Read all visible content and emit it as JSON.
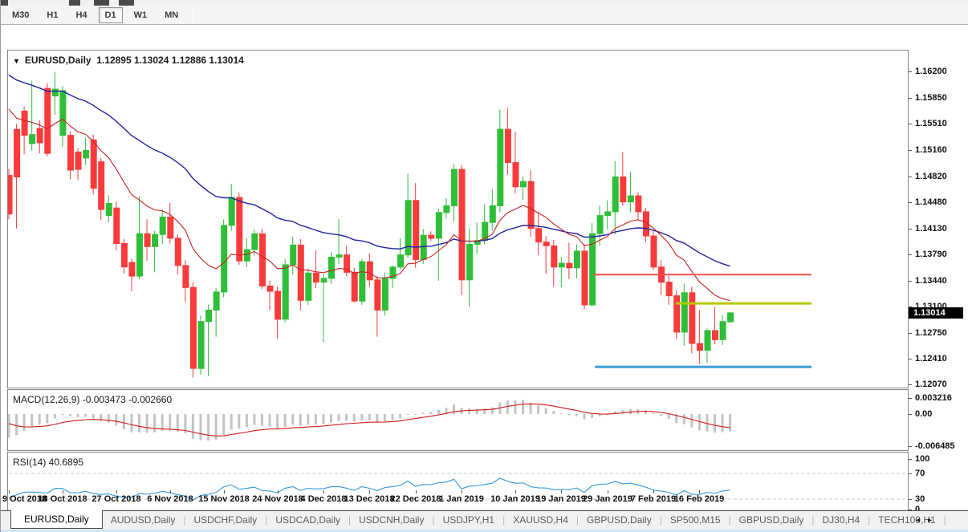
{
  "toolbar": {
    "timeframes": [
      {
        "label": "M30",
        "active": false
      },
      {
        "label": "H1",
        "active": false
      },
      {
        "label": "H4",
        "active": false
      },
      {
        "label": "D1",
        "active": true
      },
      {
        "label": "W1",
        "active": false
      },
      {
        "label": "MN",
        "active": false
      }
    ]
  },
  "chart": {
    "symbol_title": "EURUSD,Daily",
    "ohlc_text": "1.12895 1.13024 1.12886 1.13014",
    "current_price": "1.13014",
    "price_axis_labels": [
      "1.16200",
      "1.15850",
      "1.15510",
      "1.15160",
      "1.14820",
      "1.14480",
      "1.14130",
      "1.13790",
      "1.13440",
      "1.13100",
      "1.12750",
      "1.12410",
      "1.12070"
    ],
    "hlines": [
      {
        "name": "resistance-red",
        "price": 1.1352,
        "color": "#f25050",
        "width": 2
      },
      {
        "name": "level-yellow",
        "price": 1.1314,
        "color": "#b5c903",
        "width": 3
      },
      {
        "name": "support-blue",
        "price": 1.123,
        "color": "#3e9fe0",
        "width": 3
      }
    ]
  },
  "macd": {
    "label": "MACD(12,26,9) -0.003473 -0.002660",
    "axis_labels": [
      "0.003216",
      "0.00",
      "-0.006485"
    ]
  },
  "rsi": {
    "label": "RSI(14) 40.6895",
    "axis_labels": [
      "100",
      "70",
      "30",
      "0"
    ],
    "level_lines": [
      70,
      30
    ]
  },
  "date_axis": [
    {
      "label": "9 Oct 2018",
      "bar": 0
    },
    {
      "label": "18 Oct 2018",
      "bar": 7
    },
    {
      "label": "27 Oct 2018",
      "bar": 14
    },
    {
      "label": "6 Nov 2018",
      "bar": 21
    },
    {
      "label": "15 Nov 2018",
      "bar": 28
    },
    {
      "label": "24 Nov 2018",
      "bar": 35
    },
    {
      "label": "4 Dec 2018",
      "bar": 41
    },
    {
      "label": "13 Dec 2018",
      "bar": 47
    },
    {
      "label": "22 Dec 2018",
      "bar": 53
    },
    {
      "label": "1 Jan 2019",
      "bar": 59
    },
    {
      "label": "10 Jan 2019",
      "bar": 66
    },
    {
      "label": "19 Jan 2019",
      "bar": 72
    },
    {
      "label": "29 Jan 2019",
      "bar": 78
    },
    {
      "label": "7 Feb 2019",
      "bar": 84
    },
    {
      "label": "16 Feb 2019",
      "bar": 90
    }
  ],
  "tabs": {
    "items": [
      {
        "label": "EURUSD,Daily",
        "active": true
      },
      {
        "label": "AUDUSD,Daily",
        "active": false
      },
      {
        "label": "USDCHF,Daily",
        "active": false
      },
      {
        "label": "USDCAD,Daily",
        "active": false
      },
      {
        "label": "USDCNH,Daily",
        "active": false
      },
      {
        "label": "USDJPY,H1",
        "active": false
      },
      {
        "label": "XAUUSD,H4",
        "active": false
      },
      {
        "label": "GBPUSD,Daily",
        "active": false
      },
      {
        "label": "SP500,M15",
        "active": false
      },
      {
        "label": "GBPUSD,Daily",
        "active": false
      },
      {
        "label": "DJ30,H4",
        "active": false
      },
      {
        "label": "TECH100,H1",
        "active": false
      }
    ],
    "scroll_left": "◂",
    "scroll_right": "▸"
  },
  "colors": {
    "bull": "#2ebe37",
    "bear": "#f93b3b",
    "ma_fast": "#cc2222",
    "ma_slow": "#2222a0",
    "macd_hist": "#c4c4c4",
    "macd_signal": "#d01818",
    "rsi_line": "#3399dd",
    "level_dash": "#c8c8c8"
  },
  "chart_data": {
    "type": "candlestick",
    "symbol": "EURUSD",
    "timeframe": "Daily",
    "x_range": [
      "9 Oct 2018",
      "20 Feb 2019"
    ],
    "y_range": [
      1.1207,
      1.162
    ],
    "indicators": [
      "MA fast (red)",
      "MA slow (blue)",
      "MACD(12,26,9)",
      "RSI(14)"
    ],
    "candles_ohlc": [
      [
        1.1483,
        1.1492,
        1.1425,
        1.1432
      ],
      [
        1.1544,
        1.1551,
        1.1413,
        1.1481
      ],
      [
        1.1568,
        1.1574,
        1.1511,
        1.1536
      ],
      [
        1.1525,
        1.1608,
        1.1516,
        1.1537
      ],
      [
        1.1545,
        1.1556,
        1.1512,
        1.1526
      ],
      [
        1.1598,
        1.1605,
        1.1508,
        1.1512
      ],
      [
        1.1588,
        1.162,
        1.1563,
        1.1597
      ],
      [
        1.1536,
        1.1601,
        1.1521,
        1.1595
      ],
      [
        1.1536,
        1.1541,
        1.1478,
        1.149
      ],
      [
        1.1514,
        1.1519,
        1.1477,
        1.1491
      ],
      [
        1.1506,
        1.1533,
        1.1497,
        1.1516
      ],
      [
        1.153,
        1.1537,
        1.1458,
        1.1466
      ],
      [
        1.1501,
        1.1506,
        1.1424,
        1.1438
      ],
      [
        1.143,
        1.1457,
        1.1421,
        1.1446
      ],
      [
        1.144,
        1.1448,
        1.1384,
        1.1393
      ],
      [
        1.1393,
        1.1399,
        1.1353,
        1.1362
      ],
      [
        1.1368,
        1.1373,
        1.133,
        1.135
      ],
      [
        1.135,
        1.1456,
        1.1346,
        1.1406
      ],
      [
        1.1406,
        1.1425,
        1.137,
        1.1389
      ],
      [
        1.1389,
        1.141,
        1.1355,
        1.1405
      ],
      [
        1.1405,
        1.1438,
        1.1392,
        1.1428
      ],
      [
        1.1428,
        1.1447,
        1.1393,
        1.14
      ],
      [
        1.14,
        1.1405,
        1.1352,
        1.1364
      ],
      [
        1.1364,
        1.1371,
        1.1316,
        1.1335
      ],
      [
        1.1335,
        1.1342,
        1.1216,
        1.1228
      ],
      [
        1.1228,
        1.1298,
        1.122,
        1.129
      ],
      [
        1.129,
        1.1312,
        1.1218,
        1.1305
      ],
      [
        1.1305,
        1.1334,
        1.127,
        1.1329
      ],
      [
        1.1329,
        1.1425,
        1.1322,
        1.1417
      ],
      [
        1.1417,
        1.1472,
        1.141,
        1.1454
      ],
      [
        1.1454,
        1.146,
        1.1365,
        1.137
      ],
      [
        1.137,
        1.14,
        1.1362,
        1.1385
      ],
      [
        1.1385,
        1.1411,
        1.1377,
        1.1406
      ],
      [
        1.1406,
        1.1412,
        1.1333,
        1.1337
      ],
      [
        1.1337,
        1.1344,
        1.1305,
        1.133
      ],
      [
        1.133,
        1.1336,
        1.1267,
        1.1293
      ],
      [
        1.1293,
        1.1372,
        1.1289,
        1.1365
      ],
      [
        1.1365,
        1.1402,
        1.1352,
        1.1391
      ],
      [
        1.1391,
        1.1399,
        1.1305,
        1.1318
      ],
      [
        1.1318,
        1.136,
        1.1312,
        1.1354
      ],
      [
        1.1354,
        1.1384,
        1.1334,
        1.1342
      ],
      [
        1.1342,
        1.1353,
        1.1263,
        1.1347
      ],
      [
        1.1347,
        1.1382,
        1.134,
        1.1375
      ],
      [
        1.1375,
        1.1425,
        1.1366,
        1.1378
      ],
      [
        1.1378,
        1.139,
        1.135,
        1.1355
      ],
      [
        1.1355,
        1.1361,
        1.1315,
        1.1317
      ],
      [
        1.1317,
        1.1372,
        1.1312,
        1.1369
      ],
      [
        1.1369,
        1.138,
        1.1336,
        1.1345
      ],
      [
        1.1345,
        1.135,
        1.127,
        1.1305
      ],
      [
        1.1305,
        1.1355,
        1.1298,
        1.1347
      ],
      [
        1.1347,
        1.1364,
        1.1334,
        1.1362
      ],
      [
        1.1362,
        1.14,
        1.1358,
        1.1378
      ],
      [
        1.1378,
        1.1485,
        1.1374,
        1.145
      ],
      [
        1.145,
        1.1473,
        1.1361,
        1.1372
      ],
      [
        1.1372,
        1.1412,
        1.1366,
        1.1404
      ],
      [
        1.1404,
        1.1409,
        1.1396,
        1.14
      ],
      [
        1.14,
        1.1439,
        1.1344,
        1.1434
      ],
      [
        1.1434,
        1.1453,
        1.1426,
        1.1443
      ],
      [
        1.1443,
        1.1498,
        1.1422,
        1.1491
      ],
      [
        1.1491,
        1.1497,
        1.1325,
        1.1345
      ],
      [
        1.1345,
        1.1413,
        1.1309,
        1.1392
      ],
      [
        1.1392,
        1.1421,
        1.1379,
        1.1397
      ],
      [
        1.1397,
        1.1445,
        1.1392,
        1.1421
      ],
      [
        1.1421,
        1.1465,
        1.141,
        1.1443
      ],
      [
        1.1443,
        1.157,
        1.1434,
        1.1544
      ],
      [
        1.1544,
        1.1572,
        1.1484,
        1.15
      ],
      [
        1.15,
        1.1541,
        1.1459,
        1.1468
      ],
      [
        1.1468,
        1.1482,
        1.1451,
        1.1475
      ],
      [
        1.1475,
        1.149,
        1.1402,
        1.1413
      ],
      [
        1.1413,
        1.1435,
        1.1378,
        1.1395
      ],
      [
        1.1395,
        1.1403,
        1.1353,
        1.139
      ],
      [
        1.139,
        1.1398,
        1.1336,
        1.1362
      ],
      [
        1.1362,
        1.1375,
        1.1335,
        1.1367
      ],
      [
        1.1367,
        1.1394,
        1.1346,
        1.1361
      ],
      [
        1.1361,
        1.1392,
        1.1347,
        1.1383
      ],
      [
        1.1383,
        1.1392,
        1.1306,
        1.1312
      ],
      [
        1.1312,
        1.142,
        1.131,
        1.1406
      ],
      [
        1.1406,
        1.1443,
        1.139,
        1.143
      ],
      [
        1.143,
        1.145,
        1.1412,
        1.1435
      ],
      [
        1.1435,
        1.1502,
        1.1405,
        1.1481
      ],
      [
        1.1481,
        1.1514,
        1.1443,
        1.1448
      ],
      [
        1.1448,
        1.1488,
        1.1434,
        1.1456
      ],
      [
        1.1456,
        1.1461,
        1.1424,
        1.1435
      ],
      [
        1.1435,
        1.144,
        1.1395,
        1.1403
      ],
      [
        1.1403,
        1.141,
        1.1358,
        1.1362
      ],
      [
        1.1362,
        1.1371,
        1.1325,
        1.1342
      ],
      [
        1.1342,
        1.135,
        1.1312,
        1.1324
      ],
      [
        1.1324,
        1.1331,
        1.1267,
        1.1276
      ],
      [
        1.1276,
        1.134,
        1.1258,
        1.1328
      ],
      [
        1.1328,
        1.1336,
        1.1248,
        1.1261
      ],
      [
        1.1261,
        1.1305,
        1.1234,
        1.1252
      ],
      [
        1.1252,
        1.1281,
        1.1235,
        1.1278
      ],
      [
        1.1278,
        1.1309,
        1.126,
        1.1266
      ],
      [
        1.1266,
        1.1298,
        1.1259,
        1.129
      ],
      [
        1.12895,
        1.13024,
        1.12886,
        1.13014
      ]
    ]
  }
}
